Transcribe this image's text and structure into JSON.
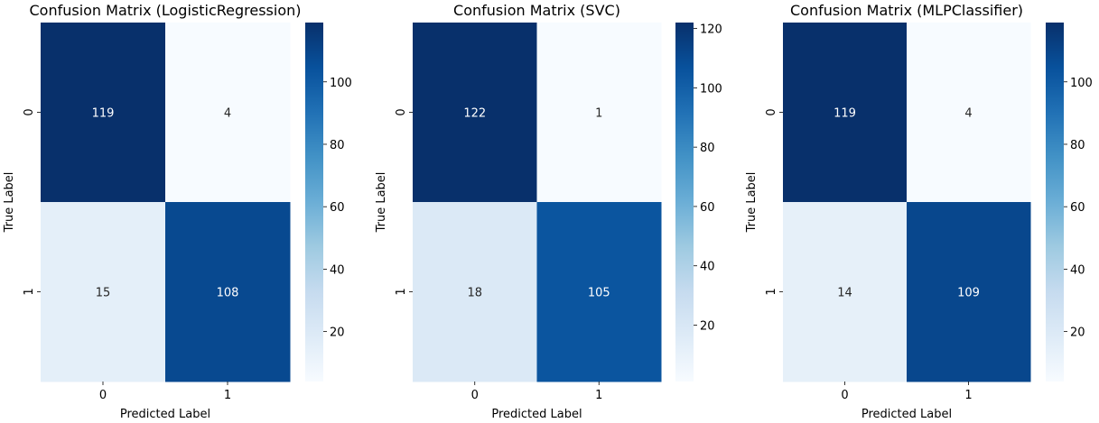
{
  "chart_data": [
    {
      "type": "heatmap",
      "title": "Confusion Matrix (LogisticRegression)",
      "xlabel": "Predicted Label",
      "ylabel": "True Label",
      "x_categories": [
        "0",
        "1"
      ],
      "y_categories": [
        "0",
        "1"
      ],
      "values": [
        [
          119,
          4
        ],
        [
          15,
          108
        ]
      ],
      "colormap": "Blues",
      "colorbar_range": [
        4,
        119
      ],
      "colorbar_ticks": [
        20,
        40,
        60,
        80,
        100
      ]
    },
    {
      "type": "heatmap",
      "title": "Confusion Matrix (SVC)",
      "xlabel": "Predicted Label",
      "ylabel": "True Label",
      "x_categories": [
        "0",
        "1"
      ],
      "y_categories": [
        "0",
        "1"
      ],
      "values": [
        [
          122,
          1
        ],
        [
          18,
          105
        ]
      ],
      "colormap": "Blues",
      "colorbar_range": [
        1,
        122
      ],
      "colorbar_ticks": [
        20,
        40,
        60,
        80,
        100,
        120
      ]
    },
    {
      "type": "heatmap",
      "title": "Confusion Matrix (MLPClassifier)",
      "xlabel": "Predicted Label",
      "ylabel": "True Label",
      "x_categories": [
        "0",
        "1"
      ],
      "y_categories": [
        "0",
        "1"
      ],
      "values": [
        [
          119,
          4
        ],
        [
          14,
          109
        ]
      ],
      "colormap": "Blues",
      "colorbar_range": [
        4,
        119
      ],
      "colorbar_ticks": [
        20,
        40,
        60,
        80,
        100
      ]
    }
  ]
}
